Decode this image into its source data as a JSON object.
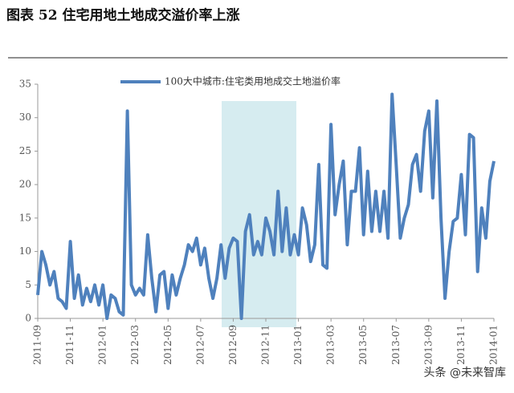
{
  "chart_data": {
    "type": "line",
    "title": "图表 52 住宅用地土地成交溢价率上涨",
    "annotation": "头条 @未来智库",
    "categories": [
      "2011-09",
      null,
      null,
      null,
      null,
      null,
      null,
      null,
      "2011-11",
      null,
      null,
      null,
      null,
      null,
      null,
      null,
      "2012-01",
      null,
      null,
      null,
      null,
      null,
      null,
      null,
      "2012-03",
      null,
      null,
      null,
      null,
      null,
      null,
      null,
      "2012-05",
      null,
      null,
      null,
      null,
      null,
      null,
      null,
      "2012-07",
      null,
      null,
      null,
      null,
      null,
      null,
      null,
      "2012-09",
      null,
      null,
      null,
      null,
      null,
      null,
      null,
      "2012-11",
      null,
      null,
      null,
      null,
      null,
      null,
      null,
      "2013-01",
      null,
      null,
      null,
      null,
      null,
      null,
      null,
      "2013-03",
      null,
      null,
      null,
      null,
      null,
      null,
      null,
      "2013-05",
      null,
      null,
      null,
      null,
      null,
      null,
      null,
      "2013-07",
      null,
      null,
      null,
      null,
      null,
      null,
      null,
      "2013-09",
      null,
      null,
      null,
      null,
      null,
      null,
      null,
      "2013-11",
      null,
      null,
      null,
      null,
      null,
      null,
      null,
      "2014-01"
    ],
    "series": [
      {
        "name": "100大中城市:住宅类用地成交土地溢价率",
        "color": "#4f81bd",
        "values": [
          3.5,
          10,
          8,
          5,
          7,
          3,
          2.5,
          1.5,
          11.5,
          3,
          6.5,
          2,
          4.5,
          2.5,
          5,
          2,
          5,
          0,
          3.5,
          3,
          1,
          0.5,
          31,
          5,
          3.5,
          4.5,
          3.5,
          12.5,
          6,
          1,
          6.5,
          7,
          1.5,
          6.5,
          3.5,
          6,
          8,
          11,
          10,
          12,
          8,
          10.5,
          6,
          3,
          6,
          11,
          6,
          10.5,
          12,
          11.5,
          0,
          13,
          15.5,
          9.5,
          11.5,
          9.5,
          15,
          13,
          9.5,
          19,
          10,
          16.5,
          9.5,
          12.5,
          9.5,
          16.5,
          14,
          8.5,
          11,
          23,
          8,
          7.5,
          29,
          15.5,
          20,
          23.5,
          11,
          19,
          19,
          25.5,
          12.5,
          22,
          13,
          19,
          13,
          19,
          12,
          33.5,
          23,
          12,
          15,
          17,
          23,
          24.5,
          19,
          28,
          31,
          18,
          32.5,
          15,
          3,
          10,
          14.5,
          15,
          21.5,
          12.5,
          27.5,
          27,
          7,
          16.5,
          12,
          20.5,
          23.5
        ]
      }
    ],
    "ylim": [
      0,
      35
    ],
    "yticks": [
      0,
      5,
      10,
      15,
      20,
      25,
      30,
      35
    ],
    "grid": false,
    "legend": "top"
  }
}
